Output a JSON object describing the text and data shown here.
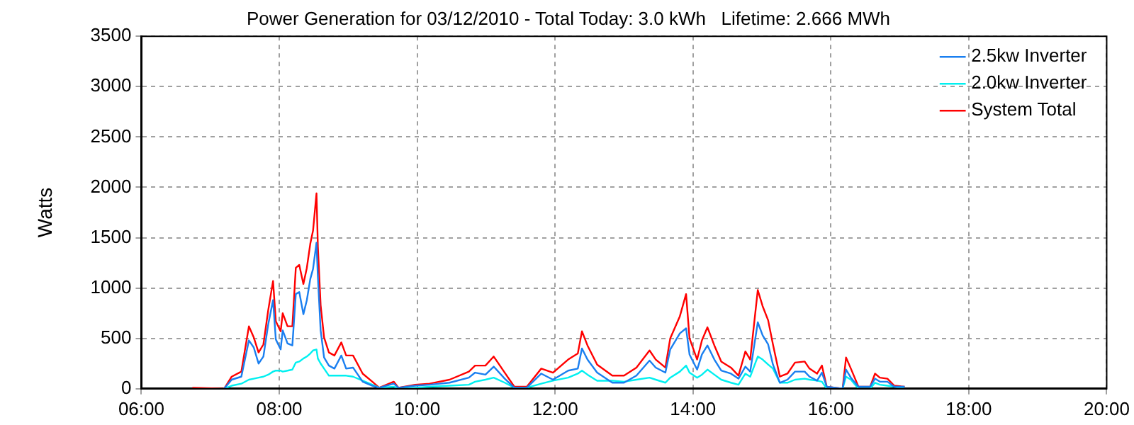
{
  "chart_data": {
    "type": "line",
    "title": "Power Generation for 03/12/2010 - Total Today: 3.0 kWh   Lifetime: 2.666 MWh",
    "ylabel": "Watts",
    "x": [
      6.74,
      7.2,
      7.31,
      7.45,
      7.56,
      7.63,
      7.7,
      7.77,
      7.84,
      7.91,
      7.95,
      8.02,
      8.05,
      8.12,
      8.19,
      8.24,
      8.29,
      8.35,
      8.4,
      8.45,
      8.49,
      8.54,
      8.56,
      8.6,
      8.65,
      8.72,
      8.8,
      8.9,
      8.97,
      9.07,
      9.21,
      9.35,
      9.45,
      9.66,
      9.73,
      9.97,
      10.18,
      10.47,
      10.75,
      10.84,
      10.99,
      11.11,
      11.27,
      11.41,
      11.59,
      11.8,
      11.97,
      12.19,
      12.33,
      12.39,
      12.47,
      12.61,
      12.83,
      13.0,
      13.18,
      13.37,
      13.46,
      13.6,
      13.67,
      13.81,
      13.9,
      13.95,
      14.06,
      14.13,
      14.21,
      14.31,
      14.41,
      14.55,
      14.66,
      14.76,
      14.83,
      14.94,
      15.01,
      15.09,
      15.16,
      15.26,
      15.37,
      15.48,
      15.62,
      15.69,
      15.8,
      15.87,
      15.94,
      16.17,
      16.22,
      16.29,
      16.4,
      16.57,
      16.64,
      16.71,
      16.82,
      16.92,
      17.07
    ],
    "series": [
      {
        "name": "2.5kw Inverter",
        "color": "#1a7ff0",
        "values": [
          null,
          0,
          90,
          120,
          480,
          410,
          250,
          320,
          640,
          880,
          490,
          390,
          580,
          450,
          430,
          940,
          960,
          740,
          880,
          1090,
          1190,
          1450,
          1110,
          580,
          310,
          230,
          200,
          330,
          200,
          210,
          70,
          30,
          10,
          50,
          10,
          30,
          40,
          60,
          110,
          160,
          140,
          220,
          100,
          10,
          10,
          150,
          90,
          180,
          200,
          400,
          290,
          160,
          60,
          60,
          130,
          280,
          210,
          160,
          390,
          550,
          600,
          340,
          190,
          340,
          430,
          290,
          180,
          150,
          100,
          220,
          170,
          660,
          530,
          440,
          240,
          60,
          90,
          170,
          170,
          120,
          80,
          160,
          20,
          0,
          190,
          110,
          20,
          20,
          100,
          70,
          70,
          20,
          20
        ]
      },
      {
        "name": "2.0kw Inverter",
        "color": "#00f0f0",
        "values": [
          null,
          0,
          30,
          50,
          90,
          100,
          110,
          120,
          140,
          170,
          180,
          180,
          170,
          180,
          190,
          260,
          270,
          300,
          320,
          350,
          380,
          390,
          300,
          250,
          200,
          130,
          130,
          130,
          130,
          120,
          80,
          40,
          10,
          20,
          0,
          10,
          20,
          30,
          40,
          70,
          90,
          110,
          60,
          10,
          10,
          50,
          80,
          110,
          150,
          180,
          140,
          80,
          80,
          70,
          90,
          110,
          90,
          60,
          110,
          170,
          230,
          160,
          110,
          140,
          190,
          140,
          90,
          60,
          40,
          150,
          120,
          320,
          290,
          240,
          200,
          60,
          60,
          90,
          100,
          90,
          80,
          70,
          0,
          0,
          120,
          90,
          0,
          0,
          60,
          40,
          30,
          20,
          0
        ]
      },
      {
        "name": "System Total",
        "color": "#ff0000",
        "values": [
          10,
          0,
          120,
          170,
          620,
          510,
          360,
          440,
          780,
          1070,
          670,
          570,
          750,
          620,
          620,
          1200,
          1230,
          1040,
          1200,
          1440,
          1570,
          1940,
          1410,
          830,
          510,
          360,
          330,
          460,
          330,
          330,
          150,
          70,
          10,
          70,
          10,
          40,
          50,
          90,
          170,
          230,
          230,
          320,
          160,
          20,
          20,
          200,
          160,
          290,
          350,
          570,
          430,
          240,
          130,
          130,
          210,
          380,
          290,
          210,
          500,
          720,
          940,
          500,
          290,
          480,
          610,
          430,
          270,
          210,
          130,
          370,
          290,
          980,
          820,
          680,
          440,
          120,
          150,
          260,
          270,
          200,
          150,
          230,
          20,
          0,
          310,
          200,
          20,
          20,
          150,
          110,
          100,
          30,
          20
        ]
      }
    ],
    "xlim": [
      6,
      20
    ],
    "xticks": [
      {
        "value": 6,
        "label": "06:00"
      },
      {
        "value": 8,
        "label": "08:00"
      },
      {
        "value": 10,
        "label": "10:00"
      },
      {
        "value": 12,
        "label": "12:00"
      },
      {
        "value": 14,
        "label": "14:00"
      },
      {
        "value": 16,
        "label": "16:00"
      },
      {
        "value": 18,
        "label": "18:00"
      },
      {
        "value": 20,
        "label": "20:00"
      }
    ],
    "ylim": [
      0,
      3500
    ],
    "yticks": [
      0,
      500,
      1000,
      1500,
      2000,
      2500,
      3000,
      3500
    ],
    "grid": true,
    "legend": "top right",
    "marker": "none",
    "line_style": "solid"
  }
}
